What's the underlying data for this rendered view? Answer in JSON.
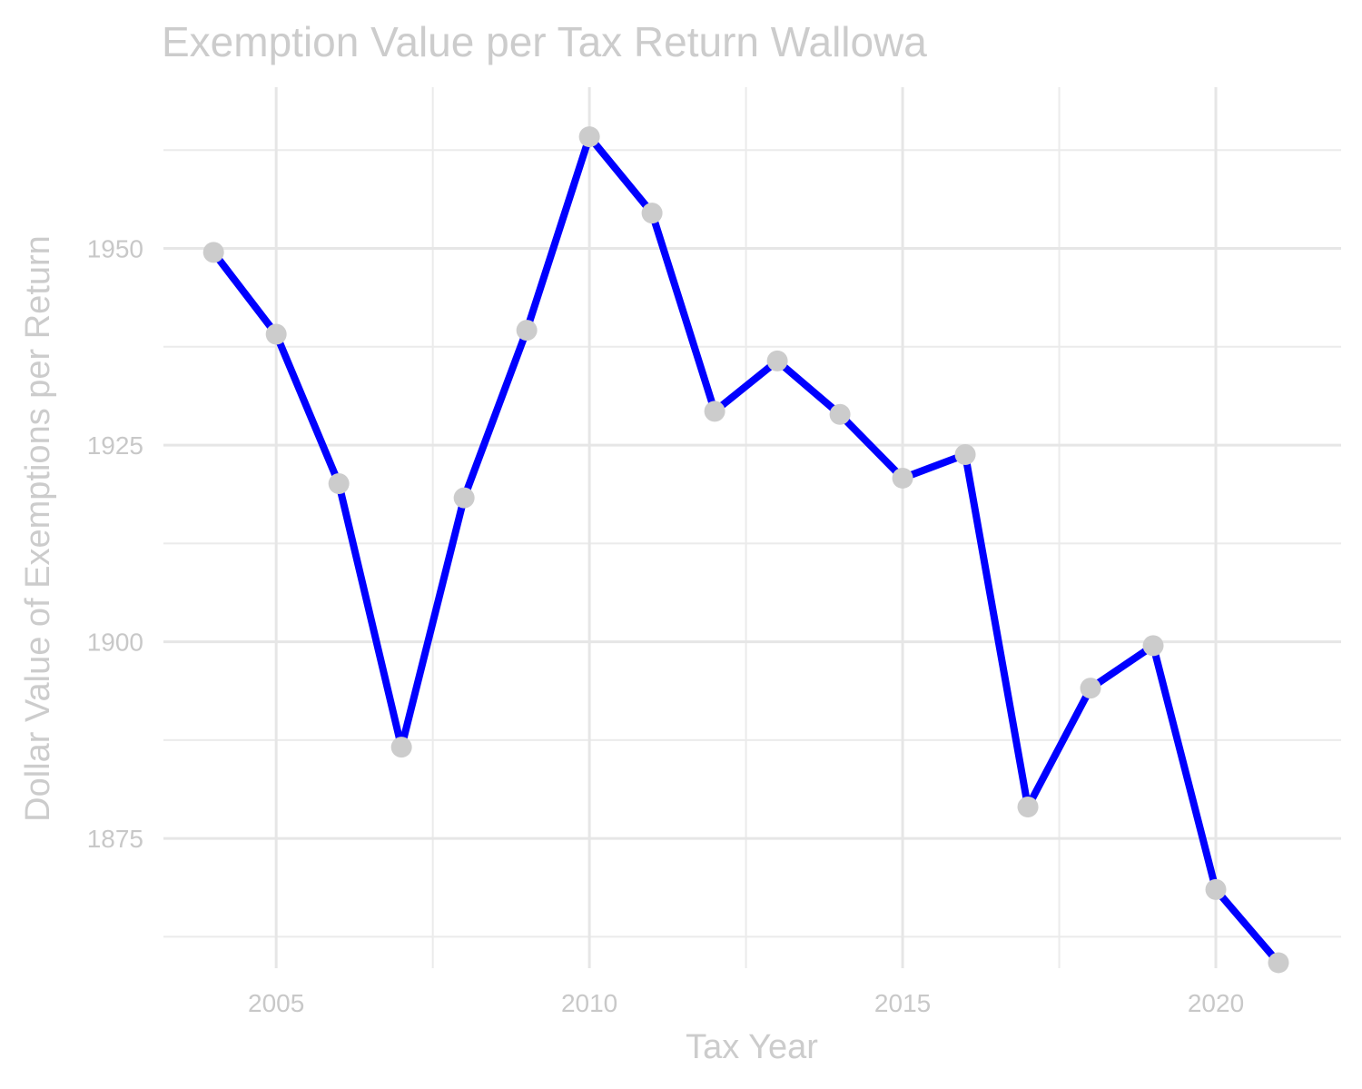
{
  "chart_data": {
    "type": "line",
    "title": "Exemption Value per Tax Return Wallowa",
    "xlabel": "Tax Year",
    "ylabel": "Dollar Value of Exemptions per Return",
    "xlim": [
      2003.2,
      2022.0
    ],
    "ylim": [
      1858.5,
      1970.5
    ],
    "x_ticks": [
      2005,
      2010,
      2015,
      2020
    ],
    "x_minor_ticks": [
      2007.5,
      2012.5,
      2017.5
    ],
    "y_ticks": [
      1875,
      1900,
      1925,
      1950
    ],
    "y_minor_ticks": [
      1862.5,
      1887.5,
      1912.5,
      1937.5,
      1962.5
    ],
    "grid": true,
    "legend": "none",
    "colors": {
      "line": "#0000ff",
      "points": "#cccccc",
      "text": "#cccccc",
      "grid": "#e6e6e6"
    },
    "series": [
      {
        "x": [
          2004,
          2005,
          2006,
          2007,
          2008,
          2009,
          2010,
          2011,
          2012,
          2013,
          2014,
          2015,
          2016,
          2017,
          2018,
          2019,
          2020,
          2021
        ],
        "values": [
          1949.5,
          1939.1,
          1920.1,
          1886.6,
          1918.3,
          1939.6,
          1964.2,
          1954.5,
          1929.3,
          1935.7,
          1928.9,
          1920.8,
          1923.8,
          1879.0,
          1894.1,
          1899.5,
          1868.5,
          1859.2
        ]
      }
    ]
  }
}
